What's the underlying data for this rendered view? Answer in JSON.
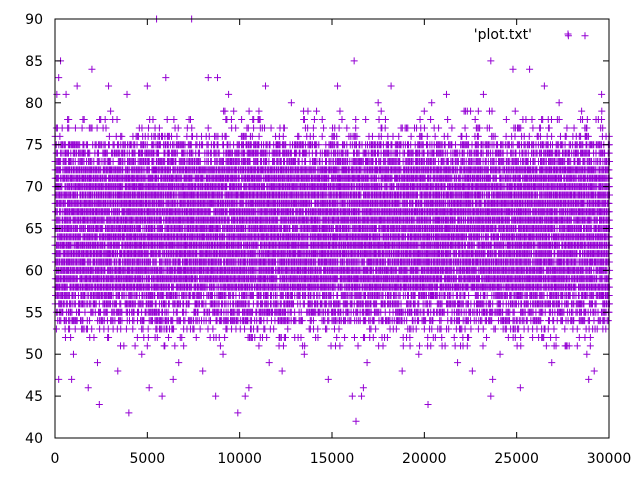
{
  "chart_data": {
    "type": "scatter",
    "title": "",
    "xlabel": "",
    "ylabel": "",
    "xlim": [
      0,
      30000
    ],
    "ylim": [
      40,
      90
    ],
    "x_ticks": [
      0,
      5000,
      10000,
      15000,
      20000,
      25000,
      30000
    ],
    "y_ticks": [
      40,
      45,
      50,
      55,
      60,
      65,
      70,
      75,
      80,
      85,
      90
    ],
    "x_tick_labels": [
      "0",
      "5000",
      "10000",
      "15000",
      "20000",
      "25000",
      "30000"
    ],
    "y_tick_labels": [
      "40",
      "45",
      "50",
      "55",
      "60",
      "65",
      "70",
      "75",
      "80",
      "85",
      "90"
    ],
    "grid": false,
    "legend_position": "top-right",
    "series": [
      {
        "name": "'plot.txt'",
        "marker": "plus",
        "color": "#9400d3",
        "x_range": [
          0,
          30000
        ],
        "y_values_integer": true,
        "dense_band": [
          54,
          75
        ],
        "outliers": [
          {
            "x": 5500,
            "y": 90
          },
          {
            "x": 7400,
            "y": 90
          },
          {
            "x": 300,
            "y": 85
          },
          {
            "x": 16200,
            "y": 85
          },
          {
            "x": 23600,
            "y": 85
          },
          {
            "x": 28700,
            "y": 88
          },
          {
            "x": 27800,
            "y": 88
          },
          {
            "x": 2000,
            "y": 84
          },
          {
            "x": 24800,
            "y": 84
          },
          {
            "x": 25700,
            "y": 84
          },
          {
            "x": 200,
            "y": 83
          },
          {
            "x": 6000,
            "y": 83
          },
          {
            "x": 8300,
            "y": 83
          },
          {
            "x": 8800,
            "y": 83
          },
          {
            "x": 1200,
            "y": 82
          },
          {
            "x": 2900,
            "y": 82
          },
          {
            "x": 5000,
            "y": 82
          },
          {
            "x": 11400,
            "y": 82
          },
          {
            "x": 15300,
            "y": 82
          },
          {
            "x": 18200,
            "y": 82
          },
          {
            "x": 26500,
            "y": 82
          },
          {
            "x": 100,
            "y": 81
          },
          {
            "x": 600,
            "y": 81
          },
          {
            "x": 3900,
            "y": 81
          },
          {
            "x": 9400,
            "y": 81
          },
          {
            "x": 21200,
            "y": 81
          },
          {
            "x": 23200,
            "y": 81
          },
          {
            "x": 29600,
            "y": 81
          },
          {
            "x": 12800,
            "y": 80
          },
          {
            "x": 17500,
            "y": 80
          },
          {
            "x": 20400,
            "y": 80
          },
          {
            "x": 27300,
            "y": 80
          },
          {
            "x": 1000,
            "y": 50
          },
          {
            "x": 4700,
            "y": 50
          },
          {
            "x": 9100,
            "y": 50
          },
          {
            "x": 13500,
            "y": 50
          },
          {
            "x": 19700,
            "y": 50
          },
          {
            "x": 24100,
            "y": 50
          },
          {
            "x": 28800,
            "y": 50
          },
          {
            "x": 2300,
            "y": 49
          },
          {
            "x": 6700,
            "y": 49
          },
          {
            "x": 11600,
            "y": 49
          },
          {
            "x": 16900,
            "y": 49
          },
          {
            "x": 21800,
            "y": 49
          },
          {
            "x": 26900,
            "y": 49
          },
          {
            "x": 3400,
            "y": 48
          },
          {
            "x": 8000,
            "y": 48
          },
          {
            "x": 12300,
            "y": 48
          },
          {
            "x": 18800,
            "y": 48
          },
          {
            "x": 22600,
            "y": 48
          },
          {
            "x": 29200,
            "y": 48
          },
          {
            "x": 200,
            "y": 47
          },
          {
            "x": 900,
            "y": 47
          },
          {
            "x": 6400,
            "y": 47
          },
          {
            "x": 14800,
            "y": 47
          },
          {
            "x": 23700,
            "y": 47
          },
          {
            "x": 28900,
            "y": 47
          },
          {
            "x": 1800,
            "y": 46
          },
          {
            "x": 5100,
            "y": 46
          },
          {
            "x": 10500,
            "y": 46
          },
          {
            "x": 16700,
            "y": 46
          },
          {
            "x": 25200,
            "y": 46
          },
          {
            "x": 5800,
            "y": 45
          },
          {
            "x": 8700,
            "y": 45
          },
          {
            "x": 10300,
            "y": 45
          },
          {
            "x": 16100,
            "y": 45
          },
          {
            "x": 16600,
            "y": 45
          },
          {
            "x": 23600,
            "y": 45
          },
          {
            "x": 2400,
            "y": 44
          },
          {
            "x": 20200,
            "y": 44
          },
          {
            "x": 4000,
            "y": 43
          },
          {
            "x": 9900,
            "y": 43
          },
          {
            "x": 16300,
            "y": 42
          }
        ]
      }
    ]
  }
}
